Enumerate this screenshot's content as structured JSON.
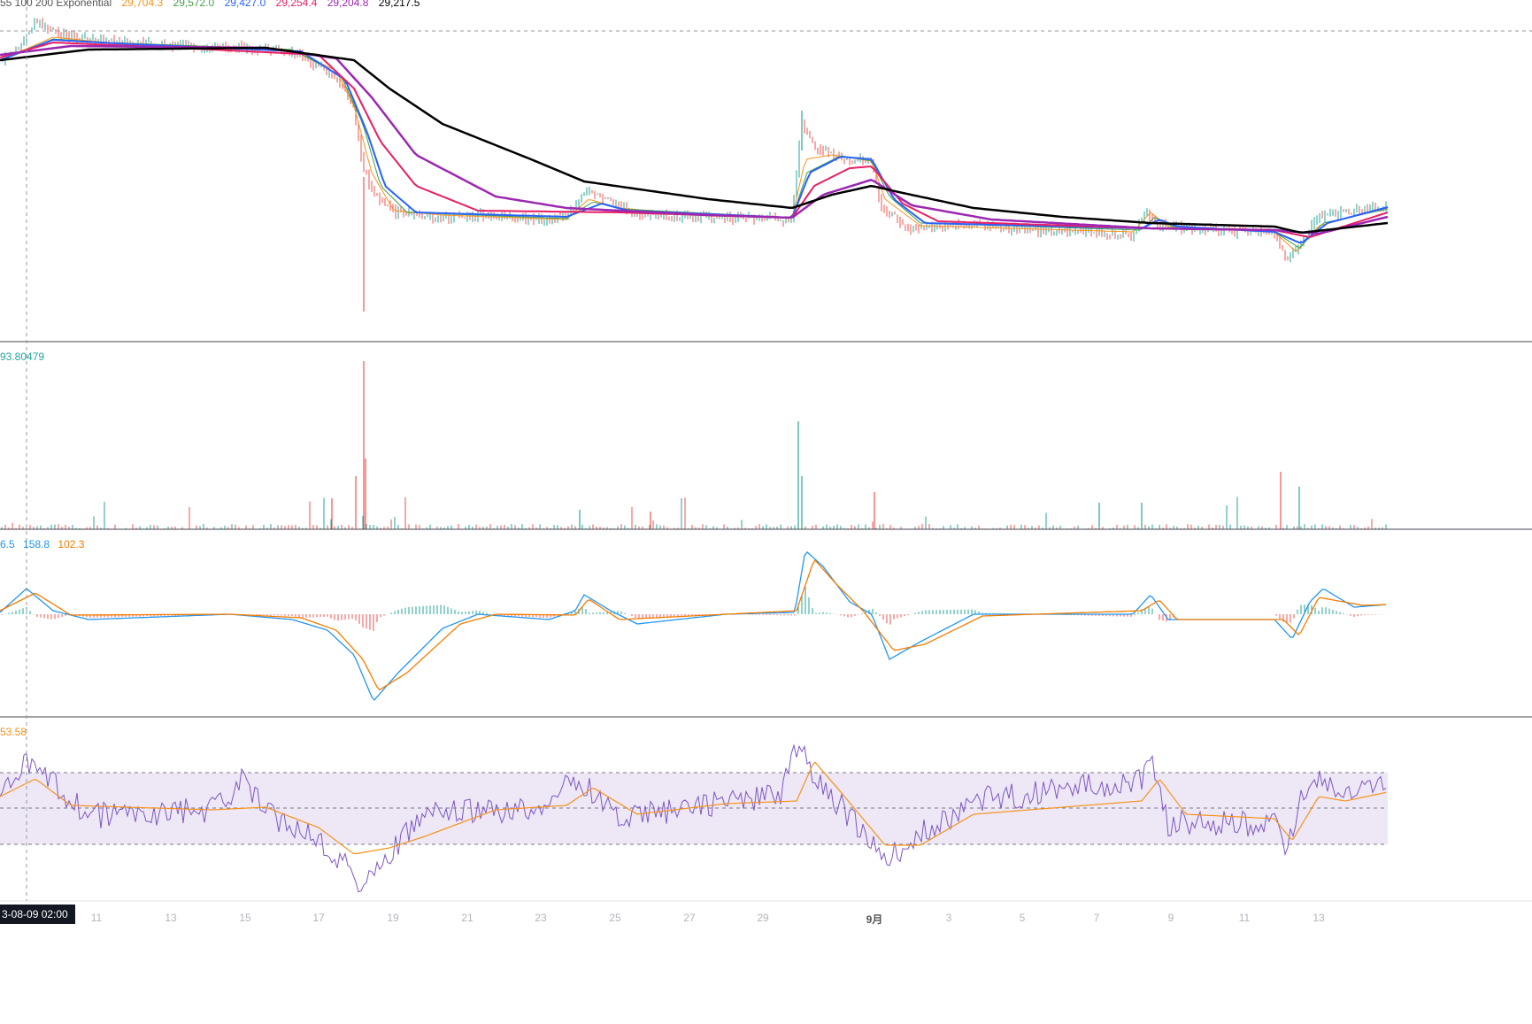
{
  "legends": {
    "ma_prefix": "55 100 200 Exponential",
    "ma_values": [
      {
        "value": "29,704.3",
        "color": "#f7931a"
      },
      {
        "value": "29,572.0",
        "color": "#43a047"
      },
      {
        "value": "29,427.0",
        "color": "#2962ff"
      },
      {
        "value": "29,254.4",
        "color": "#e91e63"
      },
      {
        "value": "29,204.8",
        "color": "#9c27b0"
      },
      {
        "value": "29,217.5",
        "color": "#000000"
      }
    ],
    "volume_value": "93.80479",
    "volume_color": "#26a69a",
    "macd_values": [
      {
        "value": "6.5",
        "color": "#2196f3"
      },
      {
        "value": "158.8",
        "color": "#2196f3"
      },
      {
        "value": "102.3",
        "color": "#f57c00"
      }
    ],
    "rsi_value": "53.58",
    "rsi_color": "#f7931a"
  },
  "crosshair_date": "3-08-09  02:00",
  "x_axis_labels": [
    "11",
    "13",
    "15",
    "17",
    "19",
    "21",
    "23",
    "25",
    "27",
    "29",
    "9月",
    "3",
    "5",
    "7",
    "9",
    "11",
    "13"
  ],
  "colors": {
    "up": "#26a69a",
    "down": "#ef5350",
    "ma_orange": "#f7931a",
    "ma_green": "#43a047",
    "ma_blue": "#2962ff",
    "ma_red": "#e91e63",
    "ma_purple": "#9c27b0",
    "ma_black": "#000000",
    "macd_line": "#2196f3",
    "signal_line": "#f57c00",
    "rsi_line": "#7e57c2",
    "rsi_band": "#ede7f6"
  }
}
